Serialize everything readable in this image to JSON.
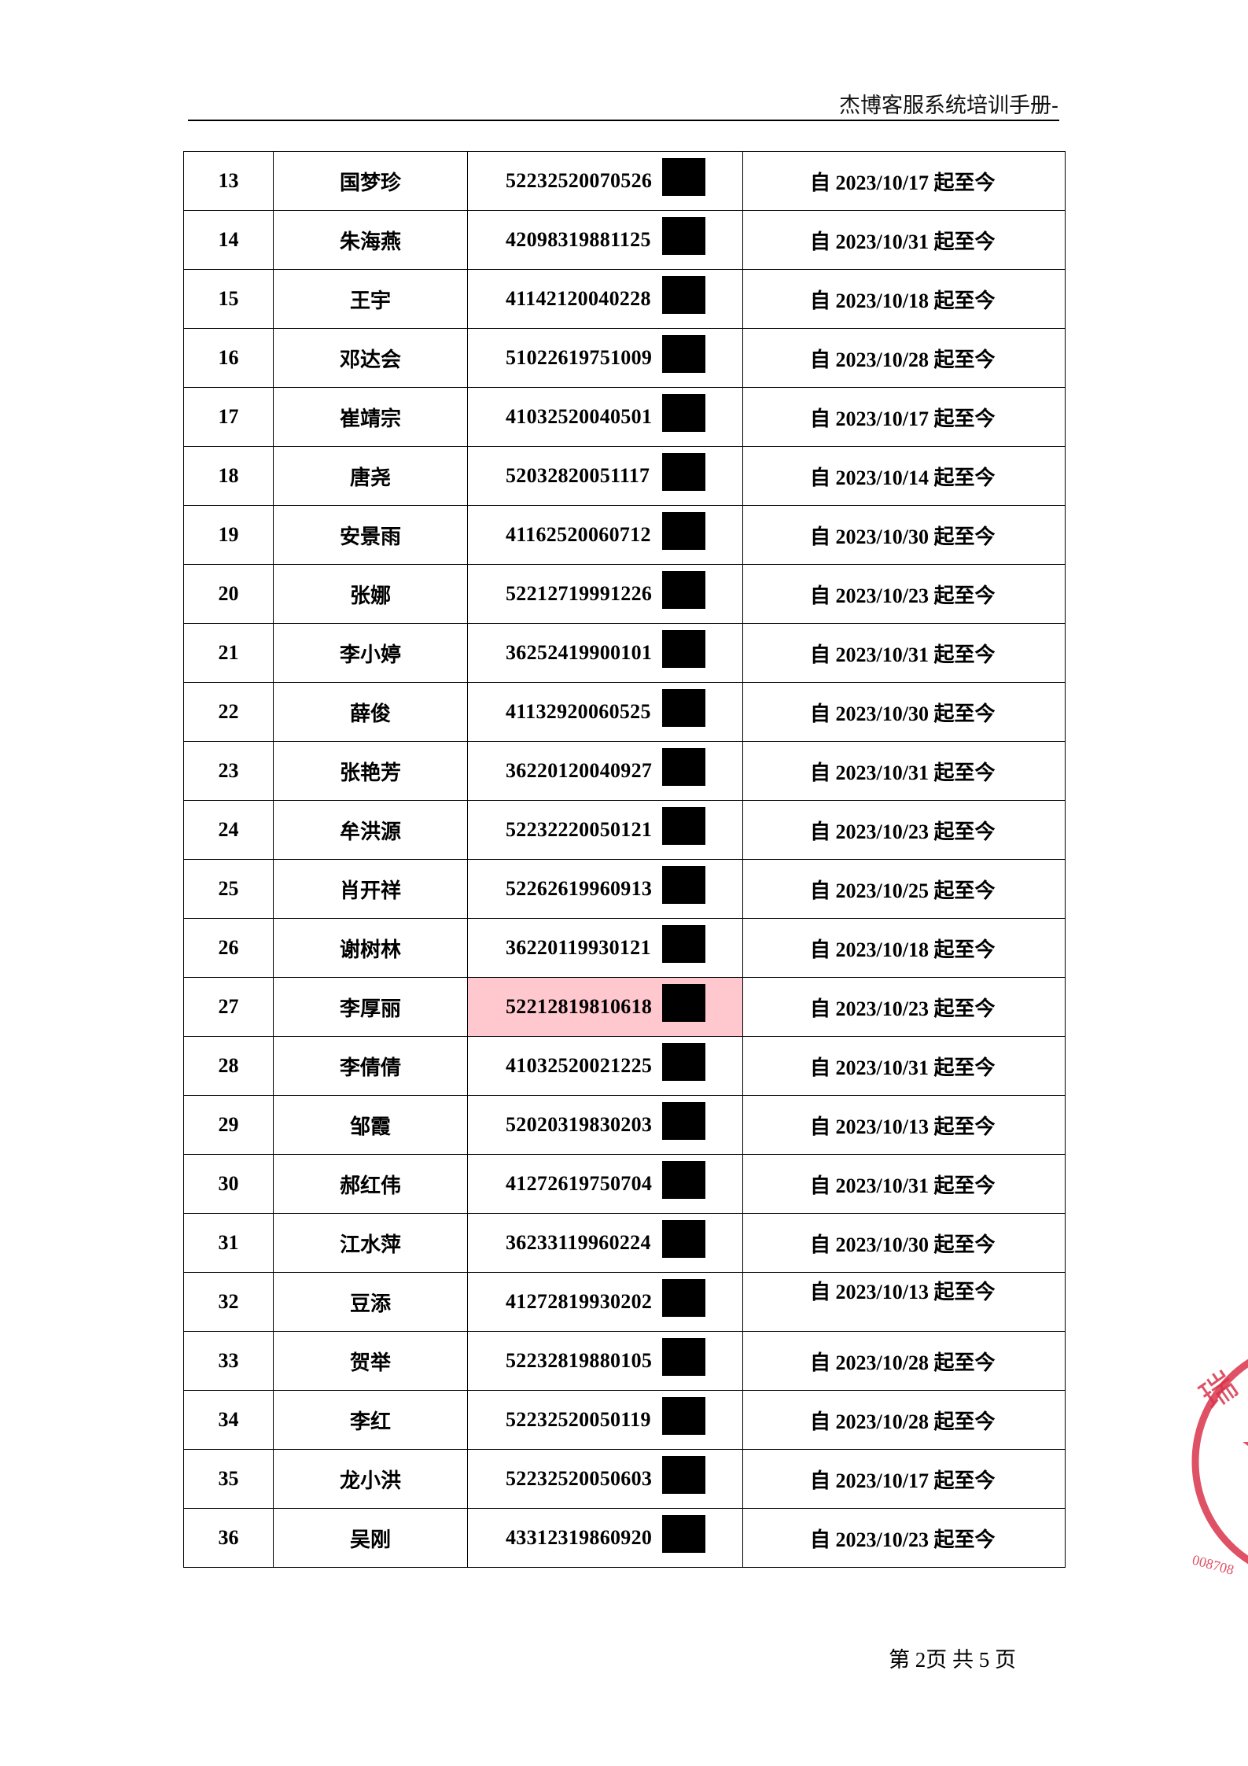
{
  "header": {
    "title": "杰博客服系统培训手册-"
  },
  "table": {
    "rows": [
      {
        "no": "13",
        "name": "国梦珍",
        "id": "52232520070526",
        "date": "自 2023/10/17 起至今"
      },
      {
        "no": "14",
        "name": "朱海燕",
        "id": "42098319881125",
        "date": "自 2023/10/31 起至今"
      },
      {
        "no": "15",
        "name": "王宇",
        "id": "41142120040228",
        "date": "自 2023/10/18 起至今"
      },
      {
        "no": "16",
        "name": "邓达会",
        "id": "51022619751009",
        "date": "自 2023/10/28 起至今"
      },
      {
        "no": "17",
        "name": "崔靖宗",
        "id": "41032520040501",
        "date": "自 2023/10/17 起至今"
      },
      {
        "no": "18",
        "name": "唐尧",
        "id": "52032820051117",
        "date": "自 2023/10/14 起至今"
      },
      {
        "no": "19",
        "name": "安景雨",
        "id": "41162520060712",
        "date": "自 2023/10/30 起至今"
      },
      {
        "no": "20",
        "name": "张娜",
        "id": "52212719991226",
        "date": "自 2023/10/23 起至今"
      },
      {
        "no": "21",
        "name": "李小婷",
        "id": "36252419900101",
        "date": "自 2023/10/31 起至今"
      },
      {
        "no": "22",
        "name": "薛俊",
        "id": "41132920060525",
        "date": "自 2023/10/30 起至今"
      },
      {
        "no": "23",
        "name": "张艳芳",
        "id": "36220120040927",
        "date": "自 2023/10/31 起至今"
      },
      {
        "no": "24",
        "name": "牟洪源",
        "id": "52232220050121",
        "date": "自 2023/10/23 起至今"
      },
      {
        "no": "25",
        "name": "肖开祥",
        "id": "52262619960913",
        "date": "自 2023/10/25 起至今"
      },
      {
        "no": "26",
        "name": "谢树林",
        "id": "36220119930121",
        "date": "自 2023/10/18 起至今"
      },
      {
        "no": "27",
        "name": "李厚丽",
        "id": "52212819810618",
        "date": "自 2023/10/23 起至今",
        "highlight": "#ffc7ce"
      },
      {
        "no": "28",
        "name": "李倩倩",
        "id": "41032520021225",
        "date": "自 2023/10/31 起至今"
      },
      {
        "no": "29",
        "name": "邹霞",
        "id": "52020319830203",
        "date": "自 2023/10/13 起至今"
      },
      {
        "no": "30",
        "name": "郝红伟",
        "id": "41272619750704",
        "date": "自 2023/10/31 起至今"
      },
      {
        "no": "31",
        "name": "江水萍",
        "id": "36233119960224",
        "date": "自 2023/10/30 起至今"
      },
      {
        "no": "32",
        "name": "豆添",
        "id": "41272819930202",
        "date": "自 2023/10/13 起至今",
        "top_aligned": true
      },
      {
        "no": "33",
        "name": "贺举",
        "id": "52232819880105",
        "date": "自 2023/10/28 起至今"
      },
      {
        "no": "34",
        "name": "李红",
        "id": "52232520050119",
        "date": "自 2023/10/28 起至今"
      },
      {
        "no": "35",
        "name": "龙小洪",
        "id": "52232520050603",
        "date": "自 2023/10/17 起至今"
      },
      {
        "no": "36",
        "name": "吴刚",
        "id": "43312319860920",
        "date": "自 2023/10/23 起至今"
      }
    ]
  },
  "footer": {
    "page": "第 2页  共 5 页"
  },
  "stamp": {
    "text": "瑞",
    "number": "008708",
    "color": "#d9324a"
  }
}
